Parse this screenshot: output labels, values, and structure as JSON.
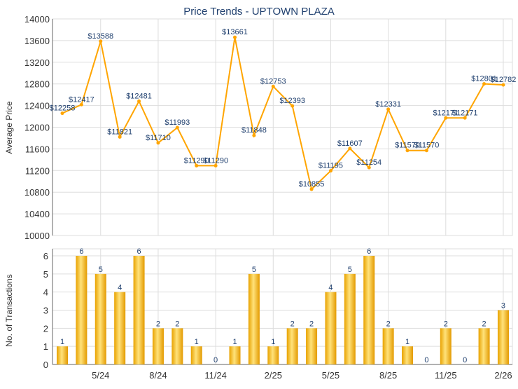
{
  "chart_data": [
    {
      "type": "line",
      "title": "Price Trends - UPTOWN PLAZA",
      "ylabel": "Average Price",
      "ylim": [
        10000,
        14000
      ],
      "yticks": [
        10000,
        10400,
        10800,
        11200,
        11600,
        12000,
        12400,
        12800,
        13200,
        13600,
        14000
      ],
      "grid": true,
      "color": "#FFA500",
      "x": [
        "3/24",
        "4/24",
        "5/24",
        "6/24",
        "7/24",
        "8/24",
        "9/24",
        "10/24",
        "11/24",
        "12/24",
        "1/25",
        "2/25",
        "3/25",
        "4/25",
        "5/25",
        "6/25",
        "7/25",
        "8/25",
        "9/25",
        "10/25",
        "11/25",
        "12/25",
        "1/26",
        "2/26"
      ],
      "values": [
        12258,
        12417,
        13588,
        11821,
        12481,
        11710,
        11993,
        11290,
        11290,
        13661,
        11848,
        12753,
        12393,
        10855,
        11195,
        11607,
        11254,
        12331,
        11570,
        11570,
        12171,
        12171,
        12801,
        12782
      ],
      "data_label_prefix": "$"
    },
    {
      "type": "bar",
      "ylabel": "No. of Transactions",
      "ylim": [
        0,
        6
      ],
      "yticks": [
        0,
        1,
        2,
        3,
        4,
        5,
        6
      ],
      "grid": true,
      "color": "#F5B000",
      "values": [
        1,
        6,
        5,
        4,
        6,
        2,
        2,
        1,
        0,
        1,
        5,
        1,
        2,
        2,
        4,
        5,
        6,
        2,
        1,
        0,
        2,
        0,
        2,
        3
      ],
      "xtick_labels": [
        "5/24",
        "8/24",
        "11/24",
        "2/25",
        "5/25",
        "8/25",
        "11/25",
        "2/26"
      ]
    }
  ]
}
